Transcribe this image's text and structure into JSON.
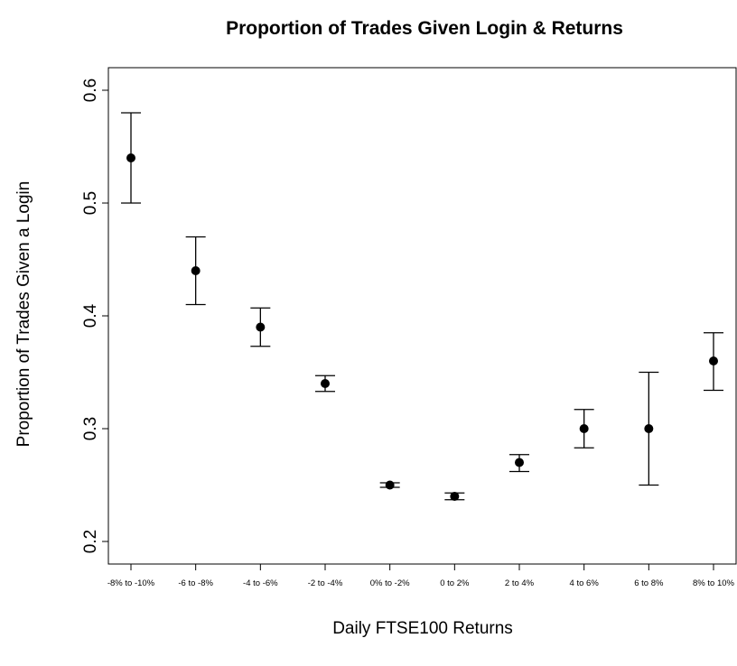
{
  "chart_data": {
    "type": "errorbar",
    "title": "Proportion of Trades Given Login & Returns",
    "x_label": "Daily FTSE100 Returns",
    "y_label": "Proportion of Trades Given a Login",
    "categories": [
      "-8% to -10%",
      "-6 to -8%",
      "-4 to -6%",
      "-2 to -4%",
      "0% to -2%",
      "0 to 2%",
      "2 to 4%",
      "4 to 6%",
      "6 to 8%",
      "8% to 10%"
    ],
    "values": [
      0.54,
      0.44,
      0.39,
      0.34,
      0.25,
      0.24,
      0.27,
      0.3,
      0.3,
      0.36
    ],
    "lower": [
      0.5,
      0.41,
      0.373,
      0.333,
      0.248,
      0.237,
      0.262,
      0.283,
      0.25,
      0.334
    ],
    "upper": [
      0.58,
      0.47,
      0.407,
      0.347,
      0.252,
      0.243,
      0.277,
      0.317,
      0.35,
      0.385
    ],
    "color": "#000000",
    "ylim": [
      0.18,
      0.62
    ],
    "yticks": [
      0.2,
      0.3,
      0.4,
      0.5,
      0.6
    ]
  }
}
